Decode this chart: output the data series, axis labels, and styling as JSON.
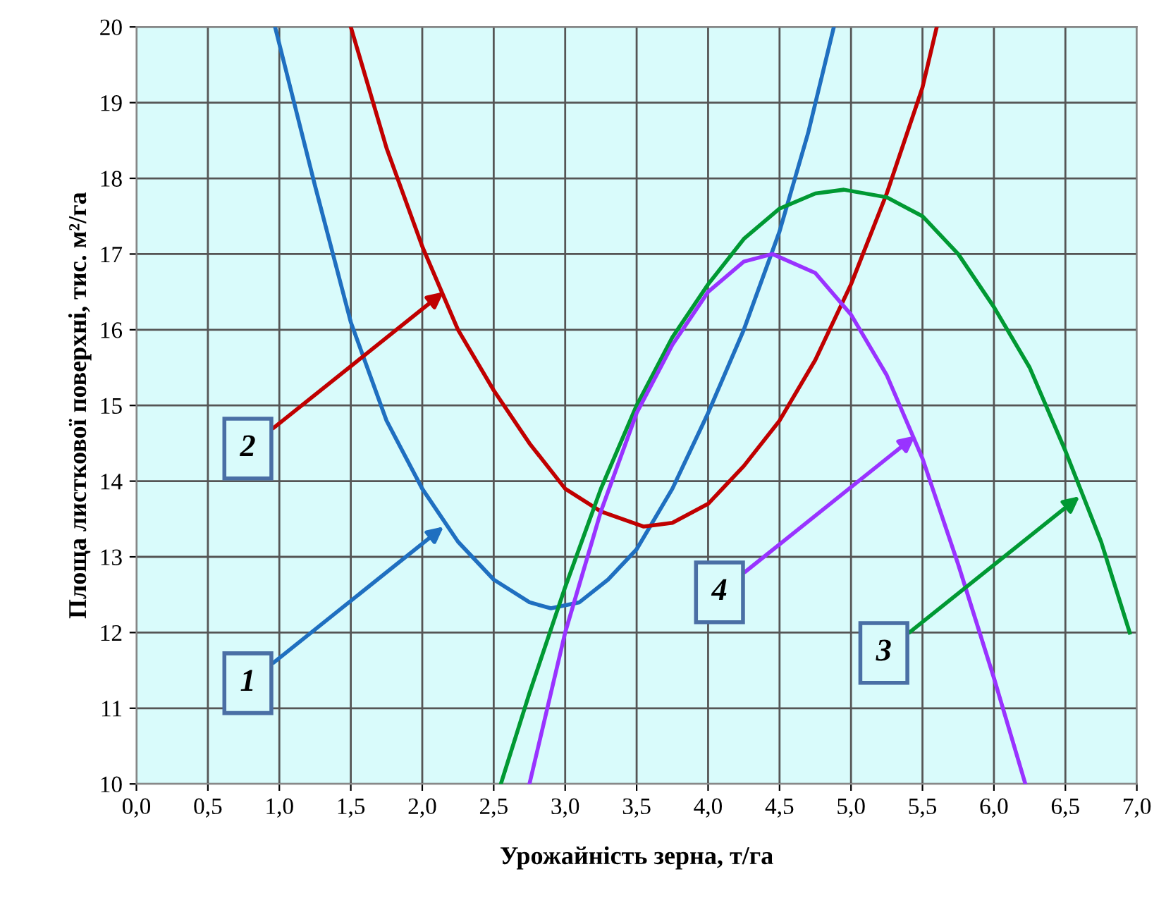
{
  "chart_data": {
    "type": "line",
    "xlabel": "Урожайність зерна, т/га",
    "ylabel": "Площа листкової поверхні, тис. м²/га",
    "series": [
      {
        "color": "#1f6fc0",
        "x": [
          0.97,
          1.25,
          1.5,
          1.75,
          2.0,
          2.25,
          2.5,
          2.75,
          2.9,
          3.1,
          3.3,
          3.5,
          3.75,
          4.0,
          4.25,
          4.5,
          4.7,
          4.88
        ],
        "values": [
          20,
          17.9,
          16.1,
          14.8,
          13.9,
          13.2,
          12.7,
          12.4,
          12.32,
          12.4,
          12.7,
          13.1,
          13.9,
          14.9,
          16.0,
          17.3,
          18.6,
          20
        ]
      },
      {
        "color": "#c00000",
        "x": [
          1.5,
          1.75,
          2.0,
          2.25,
          2.5,
          2.75,
          3.0,
          3.25,
          3.55,
          3.75,
          4.0,
          4.25,
          4.5,
          4.75,
          5.0,
          5.25,
          5.5,
          5.6
        ],
        "values": [
          20,
          18.4,
          17.1,
          16.0,
          15.2,
          14.5,
          13.9,
          13.6,
          13.4,
          13.45,
          13.7,
          14.2,
          14.8,
          15.6,
          16.6,
          17.8,
          19.2,
          20
        ]
      },
      {
        "color": "#009933",
        "x": [
          2.55,
          2.75,
          3.0,
          3.25,
          3.5,
          3.75,
          4.0,
          4.25,
          4.5,
          4.75,
          4.95,
          5.25,
          5.5,
          5.75,
          6.0,
          6.25,
          6.5,
          6.75,
          6.95
        ],
        "values": [
          10,
          11.2,
          12.6,
          13.9,
          15.0,
          15.9,
          16.6,
          17.2,
          17.6,
          17.8,
          17.85,
          17.75,
          17.5,
          17.0,
          16.3,
          15.5,
          14.4,
          13.2,
          12.0
        ]
      },
      {
        "color": "#9933ff",
        "x": [
          2.75,
          3.0,
          3.25,
          3.5,
          3.75,
          4.0,
          4.25,
          4.45,
          4.75,
          5.0,
          5.25,
          5.5,
          5.75,
          6.0,
          6.22
        ],
        "values": [
          10,
          12.0,
          13.6,
          14.9,
          15.8,
          16.5,
          16.9,
          17.0,
          16.75,
          16.2,
          15.4,
          14.3,
          12.9,
          11.4,
          10
        ]
      }
    ],
    "annotations": [
      {
        "text": "1",
        "x": 2.15,
        "y": 13.4
      },
      {
        "text": "2",
        "x": 2.15,
        "y": 16.5
      },
      {
        "text": "3",
        "x": 6.6,
        "y": 13.8
      },
      {
        "text": "4",
        "x": 5.45,
        "y": 14.6
      }
    ],
    "xlim": [
      0,
      7
    ],
    "ylim": [
      10,
      20
    ],
    "xticks": [
      {
        "value": 0,
        "label": "0,0"
      },
      {
        "value": 0.5,
        "label": "0,5"
      },
      {
        "value": 1,
        "label": "1,0"
      },
      {
        "value": 1.5,
        "label": "1,5"
      },
      {
        "value": 2,
        "label": "2,0"
      },
      {
        "value": 2.5,
        "label": "2,5"
      },
      {
        "value": 3,
        "label": "3,0"
      },
      {
        "value": 3.5,
        "label": "3,5"
      },
      {
        "value": 4,
        "label": "4,0"
      },
      {
        "value": 4.5,
        "label": "4,5"
      },
      {
        "value": 5,
        "label": "5,0"
      },
      {
        "value": 5.5,
        "label": "5,5"
      },
      {
        "value": 6,
        "label": "6,0"
      },
      {
        "value": 6.5,
        "label": "6,5"
      },
      {
        "value": 7,
        "label": "7,0"
      }
    ],
    "yticks": [
      10,
      11,
      12,
      13,
      14,
      15,
      16,
      17,
      18,
      19,
      20
    ],
    "grid": true,
    "line_style": "solid"
  }
}
